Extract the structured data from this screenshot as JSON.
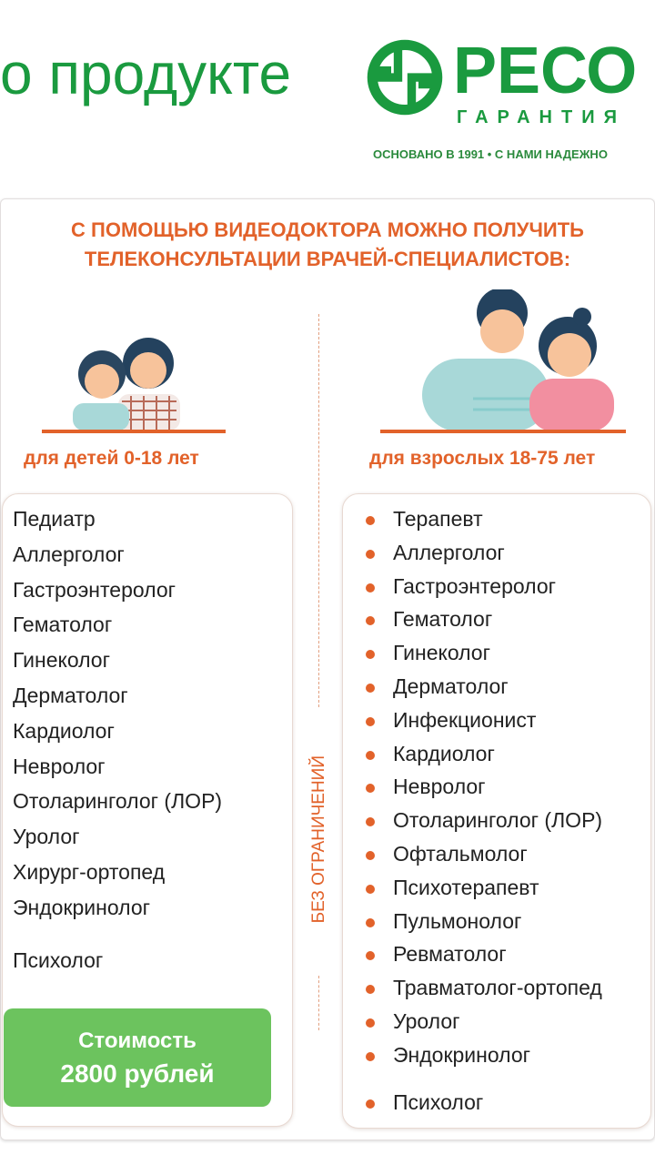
{
  "header": {
    "title": "о продукте",
    "brand_name": "РЕСО",
    "brand_sub": "ГАРАНТИЯ",
    "tagline": "ОСНОВАНО В 1991 • С НАМИ НАДЕЖНО",
    "brand_color": "#1a9a3f"
  },
  "headline": [
    "С ПОМОЩЬЮ ВИДЕОДОКТОРА МОЖНО ПОЛУЧИТЬ",
    "ТЕЛЕКОНСУЛЬТАЦИИ ВРАЧЕЙ-СПЕЦИАЛИСТОВ:"
  ],
  "accent_color": "#e2622a",
  "children": {
    "label": "для детей 0-18 лет",
    "items": [
      "Педиатр",
      "Аллерголог",
      "Гастроэнтеролог",
      "Гематолог",
      "Гинеколог",
      "Дерматолог",
      "Кардиолог",
      "Невролог",
      "Отоларинголог (ЛОР)",
      "Уролог",
      "Хирург-ортопед",
      "Эндокринолог",
      "Психолог"
    ],
    "price_label": "Стоимость",
    "price_value": "2800 рублей"
  },
  "divider_label": "БЕЗ ОГРАНИЧЕНИЙ",
  "adults": {
    "label": "для взрослых 18-75 лет",
    "items": [
      "Терапевт",
      "Аллерголог",
      "Гастроэнтеролог",
      "Гематолог",
      "Гинеколог",
      "Дерматолог",
      "Инфекционист",
      "Кардиолог",
      "Невролог",
      "Отоларинголог (ЛОР)",
      "Офтальмолог",
      "Психотерапевт",
      "Пульмонолог",
      "Ревматолог",
      "Травматолог-ортопед",
      "Уролог",
      "Эндокринолог",
      "Психолог"
    ]
  }
}
